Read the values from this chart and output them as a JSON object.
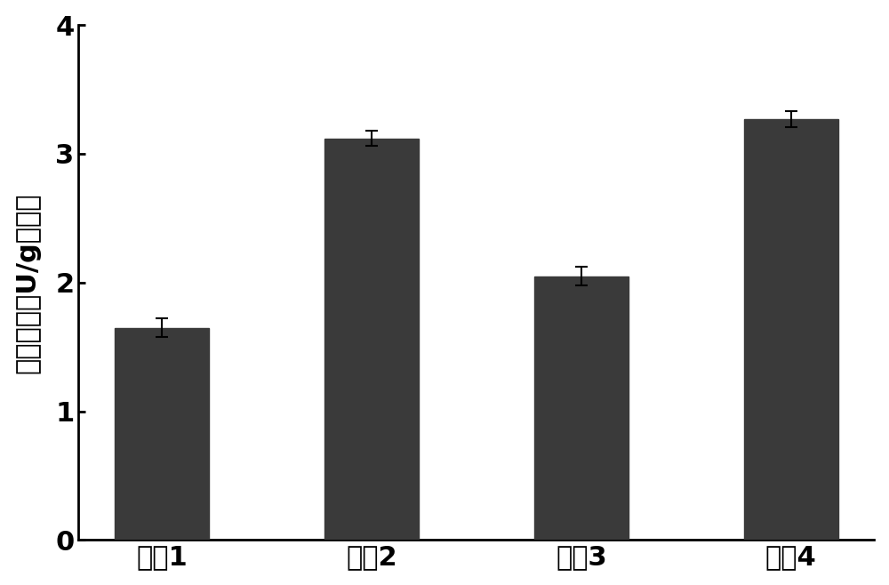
{
  "categories": [
    "样哈1",
    "样哈2",
    "样哈3",
    "样哈4"
  ],
  "values": [
    1.65,
    3.12,
    2.05,
    3.27
  ],
  "errors": [
    0.07,
    0.06,
    0.07,
    0.06
  ],
  "bar_color": "#3a3a3a",
  "bar_width": 0.45,
  "ylabel": "漆酶活性（U/g干土）",
  "ylim": [
    0,
    4
  ],
  "yticks": [
    0,
    1,
    2,
    3,
    4
  ],
  "background_color": "#ffffff",
  "ylabel_fontsize": 22,
  "tick_fontsize": 22,
  "xlabel_fontsize": 22,
  "errorbar_color": "#000000",
  "errorbar_capsize": 5,
  "errorbar_linewidth": 1.5
}
